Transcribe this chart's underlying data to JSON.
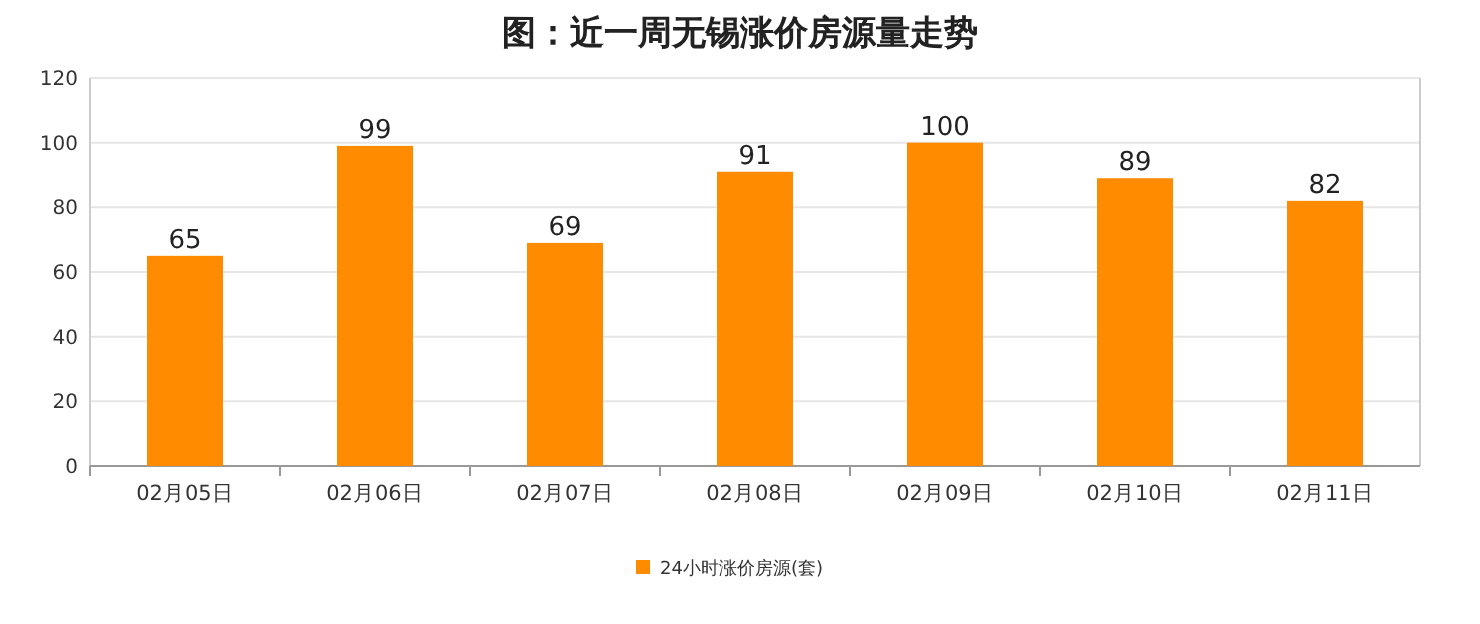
{
  "chart_data": {
    "type": "bar",
    "title": "图：近一周无锡涨价房源量走势",
    "categories": [
      "02月05日",
      "02月06日",
      "02月07日",
      "02月08日",
      "02月09日",
      "02月10日",
      "02月11日"
    ],
    "series": [
      {
        "name": "24小时涨价房源(套)",
        "color": "#ff8c00",
        "values": [
          65,
          99,
          69,
          91,
          100,
          89,
          82
        ]
      }
    ],
    "ylim": [
      0,
      120
    ],
    "yticks": [
      0,
      20,
      40,
      60,
      80,
      100,
      120
    ],
    "grid": "y",
    "legend": "bottom",
    "data_labels": true
  }
}
